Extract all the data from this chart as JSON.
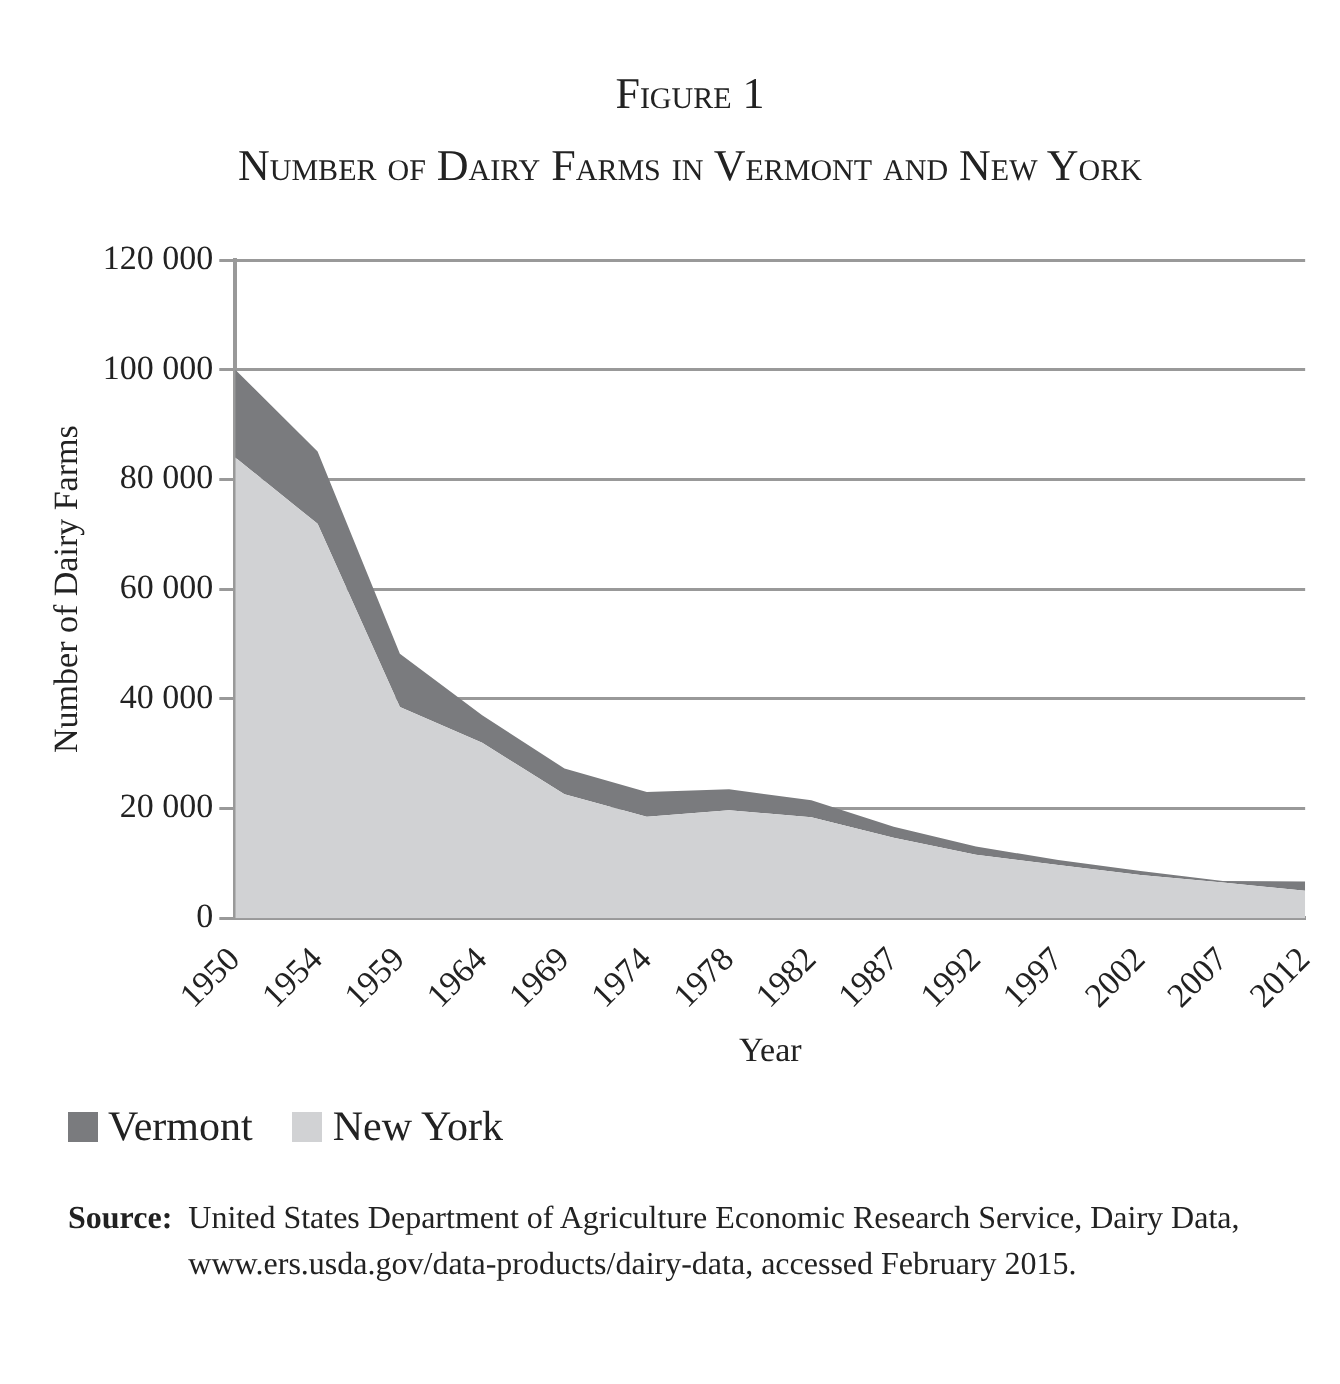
{
  "chart_data": {
    "type": "area",
    "title": "Figure 1",
    "subtitle": "Number of Dairy Farms in Vermont and New York",
    "xlabel": "Year",
    "ylabel": "Number of Dairy Farms",
    "categories": [
      "1950",
      "1954",
      "1959",
      "1964",
      "1969",
      "1974",
      "1978",
      "1982",
      "1987",
      "1992",
      "1997",
      "2002",
      "2007",
      "2012"
    ],
    "stacked": true,
    "series": [
      {
        "name": "New York",
        "color": "#d1d2d4",
        "values": [
          84000,
          71900,
          38500,
          32000,
          22600,
          18500,
          19700,
          18400,
          14700,
          11600,
          9700,
          7900,
          6500,
          5000
        ]
      },
      {
        "name": "Vermont",
        "color": "#7a7b7e",
        "values": [
          16000,
          13200,
          9700,
          5000,
          4700,
          4500,
          3800,
          3100,
          2000,
          1500,
          900,
          700,
          300,
          1700
        ]
      }
    ],
    "ylim": [
      0,
      120000
    ],
    "yticks": [
      {
        "value": 0,
        "label": "0"
      },
      {
        "value": 20000,
        "label": "20 000"
      },
      {
        "value": 40000,
        "label": "40 000"
      },
      {
        "value": 60000,
        "label": "60 000"
      },
      {
        "value": 80000,
        "label": "80 000"
      },
      {
        "value": 100000,
        "label": "100 000"
      },
      {
        "value": 120000,
        "label": "120 000"
      }
    ],
    "grid": "y",
    "legend": "bottom",
    "annotations": [
      "Source: United States Department of Agriculture Economic Research Service, Dairy Data, www.ers.usda.gov/data-products/dairy-data, accessed February 2015."
    ]
  }
}
